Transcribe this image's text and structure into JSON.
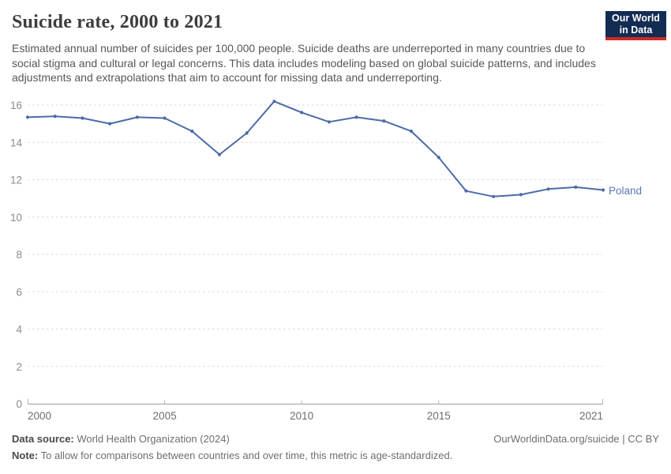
{
  "header": {
    "title": "Suicide rate, 2000 to 2021",
    "subtitle": "Estimated annual number of suicides per 100,000 people. Suicide deaths are underreported in many countries due to social stigma and cultural or legal concerns. This data includes modeling based on global suicide patterns, and includes adjustments and extrapolations that aim to account for missing data and underreporting.",
    "logo": {
      "line1": "Our World",
      "line2": "in Data",
      "bg_color": "#132c54",
      "bar_color": "#cc2a24"
    }
  },
  "chart_data": {
    "type": "line",
    "title": "Suicide rate, 2000 to 2021",
    "ylabel": "Suicides per 100,000 people",
    "x": [
      2000,
      2001,
      2002,
      2003,
      2004,
      2005,
      2006,
      2007,
      2008,
      2009,
      2010,
      2011,
      2012,
      2013,
      2014,
      2015,
      2016,
      2017,
      2018,
      2019,
      2020,
      2021
    ],
    "series": [
      {
        "name": "Poland",
        "color": "#4c6ba8",
        "label_color": "#5877b0",
        "values": [
          15.35,
          15.4,
          15.3,
          15.0,
          15.35,
          15.3,
          14.6,
          13.35,
          14.5,
          16.2,
          15.6,
          15.1,
          15.35,
          15.15,
          14.6,
          13.2,
          11.4,
          11.1,
          11.2,
          11.5,
          11.6,
          11.45
        ]
      }
    ],
    "end_label": "Poland",
    "xticks": [
      2000,
      2005,
      2010,
      2015,
      2021
    ],
    "yticks": [
      0,
      2,
      4,
      6,
      8,
      10,
      12,
      14,
      16
    ],
    "xlim": [
      2000,
      2021
    ],
    "ylim": [
      0,
      16.5
    ],
    "grid": "horizontal-dashed",
    "legend_position": "end-of-line",
    "colors": {
      "gridline": "#d9d9d9",
      "axis_line": "#9e9e9e",
      "axis_tick": "#b9b9b9",
      "ytick_label": "#8b8b8b",
      "xtick_label": "#6d6d6d"
    }
  },
  "footer": {
    "datasource_label": "Data source:",
    "datasource_text": " World Health Organization (2024)",
    "link_text": "OurWorldinData.org/suicide | CC BY",
    "note_label": "Note:",
    "note_text": " To allow for comparisons between countries and over time, this metric is age-standardized."
  }
}
